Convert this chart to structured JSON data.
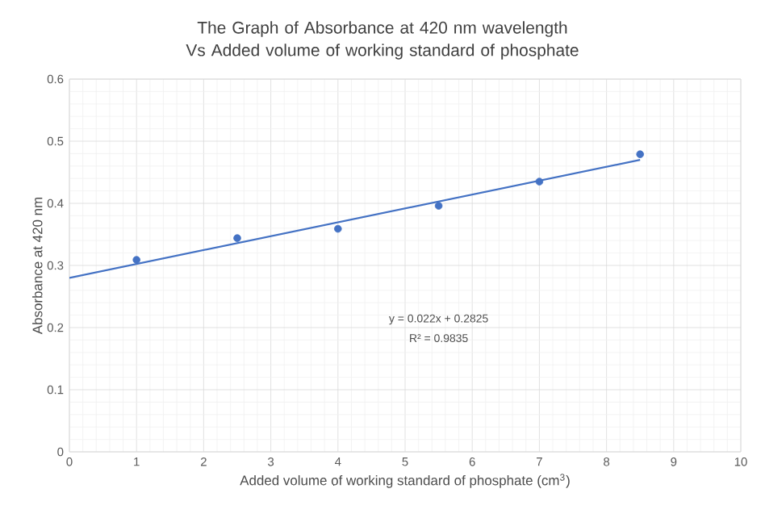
{
  "chart_data": {
    "type": "scatter",
    "title": "The Graph of Absorbance at 420 nm wavelength Vs Added volume of working standard of phosphate",
    "xlabel": "Added volume of working standard of phosphate (cm$^{3}$)",
    "ylabel": "Absorbance at 420 nm",
    "series": [
      {
        "color": "#4472c4",
        "x": [
          1,
          2.5,
          4,
          5.5,
          7,
          8.5
        ],
        "values": [
          0.309,
          0.344,
          0.359,
          0.396,
          0.435,
          0.479
        ],
        "marker": "circle"
      },
      {
        "type": "line",
        "color": "#4472c4",
        "x": [
          0,
          8.5
        ],
        "values": [
          0.28,
          0.47
        ],
        "marker": "none",
        "line_style": "solid"
      }
    ],
    "xlim": [
      0,
      10
    ],
    "ylim": [
      0,
      0.6
    ],
    "xticks": [
      0,
      1,
      2,
      3,
      4,
      5,
      6,
      7,
      8,
      9,
      10
    ],
    "yticks": [
      0,
      0.1,
      0.2,
      0.3,
      0.4,
      0.5,
      0.6
    ],
    "grid": true,
    "annotations": [
      "y = 0.022x + 0.2825",
      "R² = 0.9835"
    ]
  }
}
